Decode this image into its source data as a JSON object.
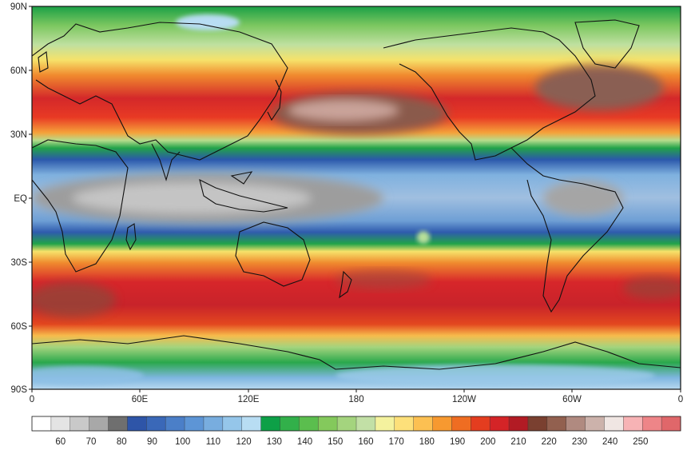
{
  "map": {
    "lat_labels": [
      "90N",
      "60N",
      "30N",
      "EQ",
      "30S",
      "60S",
      "90S"
    ],
    "lon_labels": [
      "0",
      "60E",
      "120E",
      "180",
      "120W",
      "60W",
      "0"
    ]
  },
  "colorbar": {
    "colors": [
      "#ffffff",
      "#e4e4e4",
      "#c9c9c9",
      "#a8a8a8",
      "#6f6f6f",
      "#2e55a8",
      "#3a68b8",
      "#4b7fc8",
      "#5d95d6",
      "#78addf",
      "#95c6ea",
      "#b8ddf3",
      "#0da047",
      "#32b04a",
      "#5bbe4e",
      "#84c95c",
      "#a4d47e",
      "#c2e0a6",
      "#f4f29e",
      "#fde07a",
      "#fcc052",
      "#f79930",
      "#ef6d22",
      "#e43d1f",
      "#d42427",
      "#b21b24",
      "#7a4030",
      "#92604f",
      "#b08a80",
      "#ccb2ab",
      "#f0e6e3",
      "#f7b3b5",
      "#ee8588",
      "#e0676a"
    ],
    "tick_labels": [
      "60",
      "70",
      "80",
      "90",
      "100",
      "110",
      "120",
      "130",
      "140",
      "150",
      "160",
      "170",
      "180",
      "190",
      "200",
      "210",
      "220",
      "230",
      "240",
      "250"
    ]
  }
}
